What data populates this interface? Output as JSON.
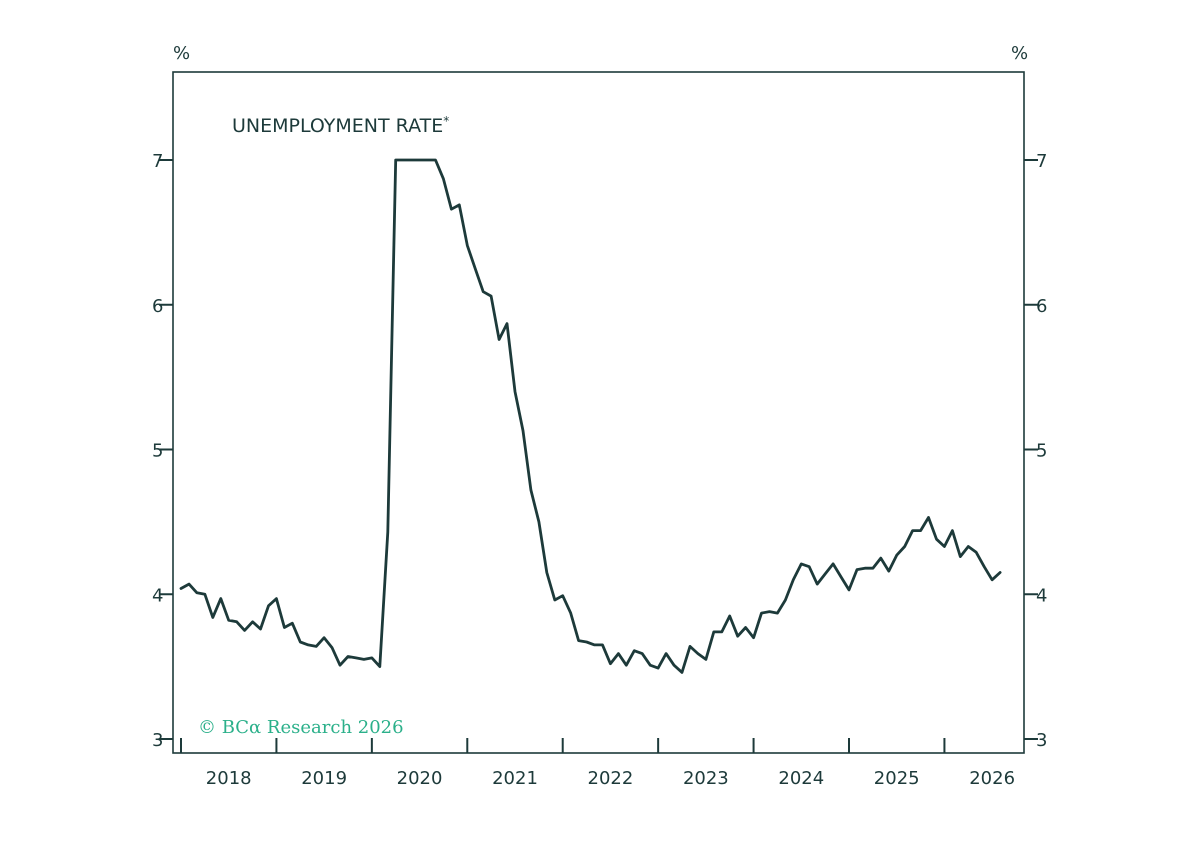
{
  "colors": {
    "line": "#1d3a3a",
    "axis": "#1d3a3a",
    "copyright": "#2bb08a"
  },
  "copyright": "© BCα Research 2026",
  "chart_data": {
    "type": "line",
    "title": "UNEMPLOYMENT RATE",
    "title_marker": "*",
    "y_unit_left": "%",
    "y_unit_right": "%",
    "ylim": [
      3,
      7.6
    ],
    "y_ticks": [
      3,
      4,
      5,
      6,
      7
    ],
    "y_tick_labels": [
      "3",
      "4",
      "5",
      "6",
      "7"
    ],
    "x_tick_labels": [
      "2018",
      "2019",
      "2020",
      "2021",
      "2022",
      "2023",
      "2024",
      "2025",
      "2026"
    ],
    "xlim": [
      "2018-01",
      "2026-10"
    ],
    "grid": false,
    "series": [
      {
        "x": [
          "2018-01",
          "2018-02",
          "2018-03",
          "2018-04",
          "2018-05",
          "2018-06",
          "2018-07",
          "2018-08",
          "2018-09",
          "2018-10",
          "2018-11",
          "2018-12",
          "2019-01",
          "2019-02",
          "2019-03",
          "2019-04",
          "2019-05",
          "2019-06",
          "2019-07",
          "2019-08",
          "2019-09",
          "2019-10",
          "2019-11",
          "2019-12",
          "2020-01",
          "2020-02",
          "2020-03",
          "2020-04",
          "2020-05",
          "2020-06",
          "2020-07",
          "2020-08",
          "2020-09",
          "2020-10",
          "2020-11",
          "2020-12",
          "2021-01",
          "2021-02",
          "2021-03",
          "2021-04",
          "2021-05",
          "2021-06",
          "2021-07",
          "2021-08",
          "2021-09",
          "2021-10",
          "2021-11",
          "2021-12",
          "2022-01",
          "2022-02",
          "2022-03",
          "2022-04",
          "2022-05",
          "2022-06",
          "2022-07",
          "2022-08",
          "2022-09",
          "2022-10",
          "2022-11",
          "2022-12",
          "2023-01",
          "2023-02",
          "2023-03",
          "2023-04",
          "2023-05",
          "2023-06",
          "2023-07",
          "2023-08",
          "2023-09",
          "2023-10",
          "2023-11",
          "2023-12",
          "2024-01",
          "2024-02",
          "2024-03",
          "2024-04",
          "2024-05",
          "2024-06",
          "2024-07",
          "2024-08",
          "2024-09",
          "2024-10",
          "2024-11",
          "2024-12",
          "2025-01",
          "2025-02",
          "2025-03",
          "2025-04",
          "2025-05",
          "2025-06",
          "2025-07",
          "2025-08",
          "2025-09",
          "2025-10",
          "2025-11",
          "2025-12",
          "2026-01",
          "2026-02",
          "2026-03",
          "2026-04",
          "2026-05",
          "2026-06",
          "2026-07",
          "2026-08"
        ],
        "values": [
          4.04,
          4.07,
          4.01,
          4.0,
          3.84,
          3.97,
          3.82,
          3.81,
          3.75,
          3.81,
          3.76,
          3.92,
          3.97,
          3.77,
          3.8,
          3.67,
          3.65,
          3.64,
          3.7,
          3.63,
          3.51,
          3.57,
          3.56,
          3.55,
          3.56,
          3.5,
          4.43,
          7.0,
          7.0,
          7.0,
          7.0,
          7.0,
          7.0,
          6.87,
          6.66,
          6.69,
          6.41,
          6.25,
          6.09,
          6.06,
          5.76,
          5.87,
          5.4,
          5.13,
          4.72,
          4.5,
          4.15,
          3.96,
          3.99,
          3.87,
          3.68,
          3.67,
          3.65,
          3.65,
          3.52,
          3.59,
          3.51,
          3.61,
          3.59,
          3.51,
          3.49,
          3.59,
          3.51,
          3.46,
          3.64,
          3.59,
          3.55,
          3.74,
          3.74,
          3.85,
          3.71,
          3.77,
          3.7,
          3.87,
          3.88,
          3.87,
          3.96,
          4.1,
          4.21,
          4.19,
          4.07,
          4.14,
          4.21,
          4.12,
          4.03,
          4.17,
          4.18,
          4.18,
          4.25,
          4.16,
          4.27,
          4.33,
          4.44,
          4.44,
          4.53,
          4.38,
          4.33,
          4.44,
          4.26,
          4.33,
          4.29,
          4.19,
          4.1,
          4.15
        ]
      }
    ]
  }
}
